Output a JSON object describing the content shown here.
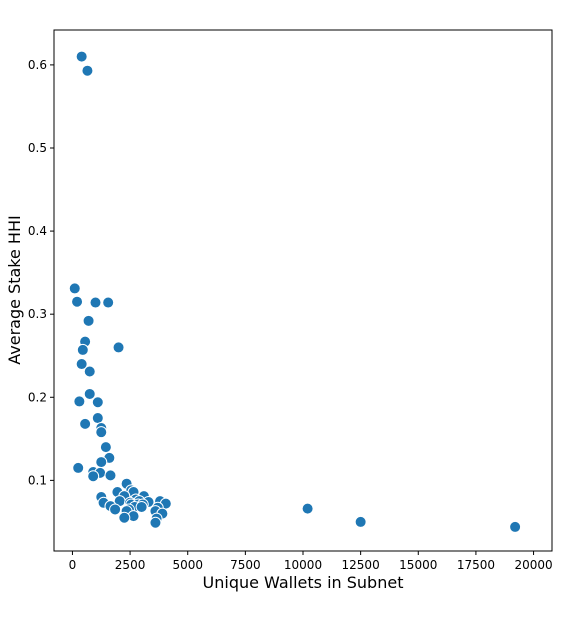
{
  "chart_data": {
    "type": "scatter",
    "xlabel": "Unique Wallets in Subnet",
    "ylabel": "Average Stake HHI",
    "xlim": [
      -800,
      20800
    ],
    "ylim": [
      0.015,
      0.642
    ],
    "xticks": [
      0,
      2500,
      5000,
      7500,
      10000,
      12500,
      15000,
      17500,
      20000
    ],
    "yticks": [
      0.1,
      0.2,
      0.3,
      0.4,
      0.5,
      0.6
    ],
    "xtick_labels": [
      "0",
      "2500",
      "5000",
      "7500",
      "10000",
      "12500",
      "15000",
      "17500",
      "20000"
    ],
    "ytick_labels": [
      "0.1",
      "0.2",
      "0.3",
      "0.4",
      "0.5",
      "0.6"
    ],
    "grid": false,
    "color": "#1f77b4",
    "points": [
      {
        "x": 400,
        "y": 0.61
      },
      {
        "x": 650,
        "y": 0.593
      },
      {
        "x": 100,
        "y": 0.331
      },
      {
        "x": 200,
        "y": 0.315
      },
      {
        "x": 1000,
        "y": 0.314
      },
      {
        "x": 1550,
        "y": 0.314
      },
      {
        "x": 700,
        "y": 0.292
      },
      {
        "x": 550,
        "y": 0.267
      },
      {
        "x": 450,
        "y": 0.257
      },
      {
        "x": 2000,
        "y": 0.26
      },
      {
        "x": 400,
        "y": 0.24
      },
      {
        "x": 750,
        "y": 0.231
      },
      {
        "x": 750,
        "y": 0.204
      },
      {
        "x": 300,
        "y": 0.195
      },
      {
        "x": 1100,
        "y": 0.194
      },
      {
        "x": 1100,
        "y": 0.175
      },
      {
        "x": 550,
        "y": 0.168
      },
      {
        "x": 1250,
        "y": 0.163
      },
      {
        "x": 1250,
        "y": 0.158
      },
      {
        "x": 1450,
        "y": 0.14
      },
      {
        "x": 1600,
        "y": 0.127
      },
      {
        "x": 1250,
        "y": 0.122
      },
      {
        "x": 250,
        "y": 0.115
      },
      {
        "x": 900,
        "y": 0.11
      },
      {
        "x": 1200,
        "y": 0.109
      },
      {
        "x": 900,
        "y": 0.105
      },
      {
        "x": 1650,
        "y": 0.106
      },
      {
        "x": 2350,
        "y": 0.096
      },
      {
        "x": 2550,
        "y": 0.088
      },
      {
        "x": 1950,
        "y": 0.086
      },
      {
        "x": 2650,
        "y": 0.086
      },
      {
        "x": 2250,
        "y": 0.081
      },
      {
        "x": 1250,
        "y": 0.08
      },
      {
        "x": 3100,
        "y": 0.081
      },
      {
        "x": 2750,
        "y": 0.077
      },
      {
        "x": 2050,
        "y": 0.075
      },
      {
        "x": 2900,
        "y": 0.075
      },
      {
        "x": 3800,
        "y": 0.075
      },
      {
        "x": 3300,
        "y": 0.074
      },
      {
        "x": 1350,
        "y": 0.073
      },
      {
        "x": 2500,
        "y": 0.073
      },
      {
        "x": 4050,
        "y": 0.072
      },
      {
        "x": 2550,
        "y": 0.071
      },
      {
        "x": 2850,
        "y": 0.071
      },
      {
        "x": 3050,
        "y": 0.071
      },
      {
        "x": 1650,
        "y": 0.069
      },
      {
        "x": 2700,
        "y": 0.068
      },
      {
        "x": 3000,
        "y": 0.068
      },
      {
        "x": 3700,
        "y": 0.067
      },
      {
        "x": 1850,
        "y": 0.065
      },
      {
        "x": 2450,
        "y": 0.065
      },
      {
        "x": 3600,
        "y": 0.063
      },
      {
        "x": 2350,
        "y": 0.063
      },
      {
        "x": 3900,
        "y": 0.06
      },
      {
        "x": 2650,
        "y": 0.057
      },
      {
        "x": 2250,
        "y": 0.055
      },
      {
        "x": 3650,
        "y": 0.054
      },
      {
        "x": 3600,
        "y": 0.049
      },
      {
        "x": 10200,
        "y": 0.066
      },
      {
        "x": 12500,
        "y": 0.05
      },
      {
        "x": 19200,
        "y": 0.044
      }
    ]
  }
}
